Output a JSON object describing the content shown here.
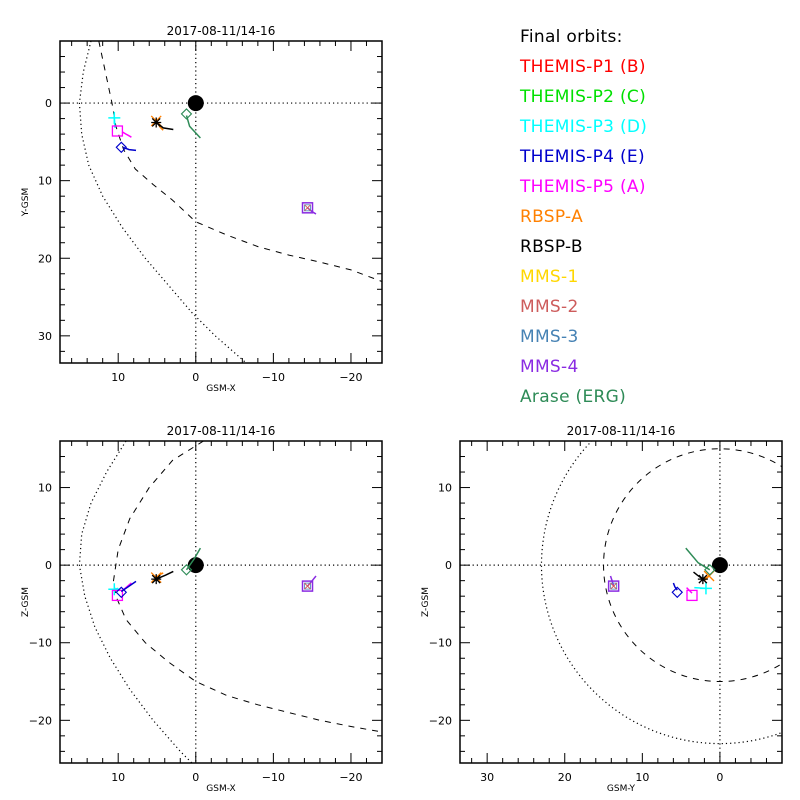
{
  "chart_data": [
    {
      "type": "scatter",
      "id": "xy",
      "title": "2017-08-11/14-16",
      "xlabel": "GSM-X",
      "ylabel": "Y-GSM",
      "xlim": [
        17.5,
        -24
      ],
      "ylim": [
        33.5,
        -8
      ],
      "xticks": [
        10,
        0,
        -10,
        -20
      ],
      "yticks": [
        0,
        10,
        20,
        30
      ],
      "grid": "dotted axes at 0",
      "boundaries": {
        "magnetopause": [
          [
            12.5,
            -8
          ],
          [
            10.8,
            0
          ],
          [
            10.3,
            3
          ],
          [
            9.3,
            6
          ],
          [
            7.8,
            8.5
          ],
          [
            5.5,
            10.5
          ],
          [
            3,
            12.5
          ],
          [
            0,
            15.3
          ],
          [
            -4,
            17
          ],
          [
            -8,
            18.5
          ],
          [
            -12,
            19.6
          ],
          [
            -16,
            20.5
          ],
          [
            -20,
            21.5
          ],
          [
            -24,
            23
          ]
        ],
        "bow_shock": [
          [
            13.5,
            -8
          ],
          [
            14.5,
            -4
          ],
          [
            15,
            0
          ],
          [
            14.7,
            4
          ],
          [
            13.8,
            8
          ],
          [
            12,
            12
          ],
          [
            9.5,
            16
          ],
          [
            6.5,
            20
          ],
          [
            3.5,
            23.5
          ],
          [
            0.5,
            27
          ],
          [
            -2.5,
            30
          ],
          [
            -6.5,
            33.5
          ]
        ]
      },
      "spacecraft": [
        {
          "name": "THEMIS-P3",
          "symbol": "plus",
          "pos": [
            10.5,
            1.9
          ],
          "trail": [
            [
              10.5,
              1.9
            ],
            [
              10.4,
              3.2
            ]
          ]
        },
        {
          "name": "THEMIS-P5",
          "symbol": "square",
          "pos": [
            10.1,
            3.6
          ],
          "trail": [
            [
              9.5,
              3.7
            ],
            [
              9.0,
              4.0
            ],
            [
              8.3,
              4.4
            ]
          ]
        },
        {
          "name": "THEMIS-P4",
          "symbol": "diamond",
          "pos": [
            9.6,
            5.7
          ],
          "trail": [
            [
              9.4,
              5.7
            ],
            [
              8.6,
              6.0
            ],
            [
              7.7,
              6.1
            ]
          ]
        },
        {
          "name": "RBSP-A",
          "symbol": "x",
          "pos": [
            5.1,
            2.3
          ],
          "trail": [
            [
              5.1,
              2.3
            ],
            [
              4.6,
              3.1
            ],
            [
              4.2,
              3.5
            ]
          ]
        },
        {
          "name": "RBSP-B",
          "symbol": "asterisk",
          "pos": [
            5.1,
            2.5
          ],
          "trail": [
            [
              5.1,
              2.5
            ],
            [
              4.2,
              3.2
            ],
            [
              2.9,
              3.4
            ]
          ]
        },
        {
          "name": "Arase (ERG)",
          "symbol": "diamond",
          "pos": [
            1.2,
            1.4
          ],
          "trail": [
            [
              1.2,
              1.6
            ],
            [
              0.8,
              3.0
            ],
            [
              -0.6,
              4.5
            ]
          ]
        },
        {
          "name": "MMS",
          "symbol": "square",
          "pos": [
            -14.4,
            13.5
          ],
          "trail": [
            [
              -14.4,
              13.5
            ],
            [
              -15.0,
              14.0
            ],
            [
              -15.5,
              14.3
            ]
          ]
        }
      ],
      "earth": [
        0,
        0
      ]
    },
    {
      "type": "scatter",
      "id": "xz",
      "title": "2017-08-11/14-16",
      "xlabel": "GSM-X",
      "ylabel": "Z-GSM",
      "xlim": [
        17.5,
        -24
      ],
      "ylim": [
        -25.5,
        16
      ],
      "xticks": [
        10,
        0,
        -10,
        -20
      ],
      "yticks": [
        10,
        0,
        -10,
        -20
      ],
      "grid": "dotted axes at 0",
      "boundaries": {
        "magnetopause": [
          [
            -1,
            16
          ],
          [
            3,
            13.5
          ],
          [
            6,
            10
          ],
          [
            8.5,
            6
          ],
          [
            10,
            2
          ],
          [
            10.6,
            -2
          ],
          [
            10.3,
            -4
          ],
          [
            9,
            -7
          ],
          [
            6.5,
            -10
          ],
          [
            3.5,
            -12.5
          ],
          [
            0,
            -15
          ],
          [
            -4,
            -16.8
          ],
          [
            -8,
            -18
          ],
          [
            -12,
            -19
          ],
          [
            -16,
            -20
          ],
          [
            -20,
            -20.8
          ],
          [
            -24,
            -21.5
          ]
        ],
        "bow_shock": [
          [
            9,
            16
          ],
          [
            11.5,
            12
          ],
          [
            13.5,
            8
          ],
          [
            14.7,
            4
          ],
          [
            15,
            0
          ],
          [
            14.3,
            -4
          ],
          [
            13,
            -8
          ],
          [
            11,
            -12
          ],
          [
            8.5,
            -16
          ],
          [
            5.5,
            -20
          ],
          [
            2,
            -24
          ],
          [
            0.5,
            -25.5
          ]
        ]
      },
      "spacecraft": [
        {
          "name": "THEMIS-P3",
          "symbol": "plus",
          "pos": [
            10.5,
            -3.1
          ],
          "trail": [
            [
              10.5,
              -3.1
            ],
            [
              10.0,
              -3.0
            ]
          ]
        },
        {
          "name": "THEMIS-P5",
          "symbol": "square",
          "pos": [
            10.1,
            -3.9
          ],
          "trail": [
            [
              9.6,
              -3.4
            ],
            [
              9.0,
              -2.9
            ],
            [
              8.3,
              -2.3
            ]
          ]
        },
        {
          "name": "THEMIS-P4",
          "symbol": "diamond",
          "pos": [
            9.6,
            -3.5
          ],
          "trail": [
            [
              9.6,
              -3.4
            ],
            [
              8.6,
              -2.7
            ],
            [
              7.7,
              -2.1
            ]
          ]
        },
        {
          "name": "RBSP-A",
          "symbol": "x",
          "pos": [
            5.1,
            -1.6
          ],
          "trail": [
            [
              5.1,
              -1.6
            ],
            [
              4.6,
              -1.2
            ],
            [
              4.2,
              -1.0
            ]
          ]
        },
        {
          "name": "RBSP-B",
          "symbol": "asterisk",
          "pos": [
            5.1,
            -1.8
          ],
          "trail": [
            [
              5.1,
              -1.8
            ],
            [
              3.9,
              -1.3
            ],
            [
              2.9,
              -0.8
            ]
          ]
        },
        {
          "name": "Arase (ERG)",
          "symbol": "diamond",
          "pos": [
            1.2,
            -0.6
          ],
          "trail": [
            [
              1.2,
              -0.6
            ],
            [
              0.2,
              0.8
            ],
            [
              -0.6,
              2.2
            ]
          ]
        },
        {
          "name": "MMS",
          "symbol": "square",
          "pos": [
            -14.4,
            -2.7
          ],
          "trail": [
            [
              -14.4,
              -2.7
            ],
            [
              -15.0,
              -2.0
            ],
            [
              -15.5,
              -1.4
            ]
          ]
        }
      ],
      "earth": [
        0,
        0
      ]
    },
    {
      "type": "scatter",
      "id": "yz",
      "title": "2017-08-11/14-16",
      "xlabel": "GSM-Y",
      "ylabel": "Z-GSM",
      "xlim": [
        33.5,
        -8
      ],
      "ylim": [
        -25.5,
        16
      ],
      "xticks": [
        30,
        20,
        10,
        0
      ],
      "yticks": [
        10,
        0,
        -10,
        -20
      ],
      "grid": "dotted axes at 0",
      "boundaries": {
        "magnetopause_circle_radius": 15,
        "bow_shock_circle_radius": 23
      },
      "spacecraft": [
        {
          "name": "MMS",
          "symbol": "square",
          "pos": [
            13.7,
            -2.7
          ],
          "trail": [
            [
              13.7,
              -2.7
            ],
            [
              13.9,
              -2.0
            ],
            [
              14.1,
              -1.4
            ]
          ]
        },
        {
          "name": "THEMIS-P4",
          "symbol": "diamond",
          "pos": [
            5.5,
            -3.5
          ],
          "trail": [
            [
              5.5,
              -3.2
            ],
            [
              5.8,
              -2.8
            ],
            [
              6.0,
              -2.3
            ]
          ]
        },
        {
          "name": "THEMIS-P5",
          "symbol": "square",
          "pos": [
            3.6,
            -3.9
          ],
          "trail": [
            [
              3.6,
              -3.6
            ],
            [
              4.0,
              -3.2
            ],
            [
              4.3,
              -2.9
            ]
          ]
        },
        {
          "name": "THEMIS-P3",
          "symbol": "plus",
          "pos": [
            1.8,
            -3.0
          ],
          "trail": [
            [
              1.8,
              -3.0
            ],
            [
              3.3,
              -2.9
            ]
          ]
        },
        {
          "name": "RBSP-A",
          "symbol": "x",
          "pos": [
            1.4,
            -1.4
          ],
          "trail": [
            [
              1.4,
              -1.4
            ],
            [
              2.2,
              -1.8
            ]
          ]
        },
        {
          "name": "RBSP-B",
          "symbol": "asterisk",
          "pos": [
            2.2,
            -1.8
          ],
          "trail": [
            [
              2.2,
              -1.8
            ],
            [
              2.9,
              -1.3
            ],
            [
              3.4,
              -0.9
            ]
          ]
        },
        {
          "name": "Arase (ERG)",
          "symbol": "diamond",
          "pos": [
            1.3,
            -0.6
          ],
          "trail": [
            [
              1.3,
              -0.6
            ],
            [
              2.8,
              0.3
            ],
            [
              4.4,
              2.2
            ]
          ]
        }
      ],
      "earth": [
        0,
        0
      ]
    }
  ],
  "legend": {
    "title": "Final orbits:",
    "items": [
      {
        "label": "THEMIS-P1 (B)",
        "color": "#ff0000"
      },
      {
        "label": "THEMIS-P2 (C)",
        "color": "#00e000"
      },
      {
        "label": "THEMIS-P3 (D)",
        "color": "#00ffff"
      },
      {
        "label": "THEMIS-P4 (E)",
        "color": "#0000cc"
      },
      {
        "label": "THEMIS-P5 (A)",
        "color": "#ff00ff"
      },
      {
        "label": "RBSP-A",
        "color": "#ff8000"
      },
      {
        "label": "RBSP-B",
        "color": "#000000"
      },
      {
        "label": "MMS-1",
        "color": "#ffd700"
      },
      {
        "label": "MMS-2",
        "color": "#cd5c5c"
      },
      {
        "label": "MMS-3",
        "color": "#4682b4"
      },
      {
        "label": "MMS-4",
        "color": "#8a2be2"
      },
      {
        "label": "Arase (ERG)",
        "color": "#2e8b57"
      }
    ]
  },
  "colors": {
    "THEMIS-P3": "#00ffff",
    "THEMIS-P4": "#0000cc",
    "THEMIS-P5": "#ff00ff",
    "RBSP-A": "#ff8000",
    "RBSP-B": "#000000",
    "Arase (ERG)": "#2e8b57",
    "MMS": "#8a2be2"
  }
}
